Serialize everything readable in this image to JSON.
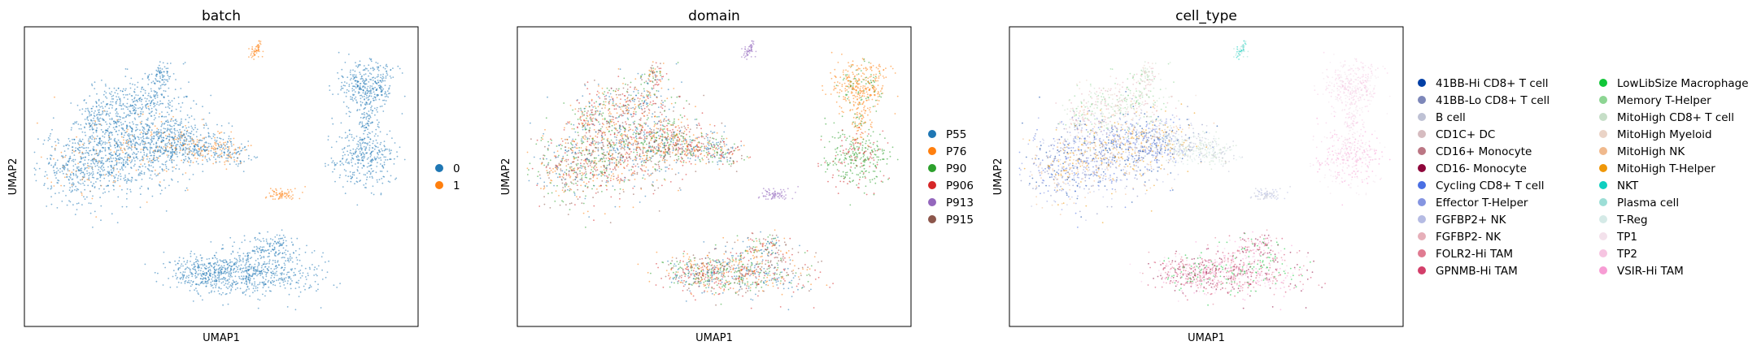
{
  "chart_data": [
    {
      "type": "scatter",
      "title": "batch",
      "xlabel": "UMAP1",
      "ylabel": "UMAP2",
      "legend_position": "right",
      "grid": false,
      "series": [
        {
          "name": "0",
          "color": "#1f77b4"
        },
        {
          "name": "1",
          "color": "#ff7f0e"
        }
      ]
    },
    {
      "type": "scatter",
      "title": "domain",
      "xlabel": "UMAP1",
      "ylabel": "UMAP2",
      "legend_position": "right",
      "grid": false,
      "series": [
        {
          "name": "P55",
          "color": "#1f77b4"
        },
        {
          "name": "P76",
          "color": "#ff7f0e"
        },
        {
          "name": "P90",
          "color": "#2ca02c"
        },
        {
          "name": "P906",
          "color": "#d62728"
        },
        {
          "name": "P913",
          "color": "#9467bd"
        },
        {
          "name": "P915",
          "color": "#8c564b"
        }
      ]
    },
    {
      "type": "scatter",
      "title": "cell_type",
      "xlabel": "UMAP1",
      "ylabel": "UMAP2",
      "legend_position": "right",
      "grid": false,
      "series": [
        {
          "name": "41BB-Hi CD8+ T cell",
          "color": "#023fa5"
        },
        {
          "name": "41BB-Lo CD8+ T cell",
          "color": "#7d87b9"
        },
        {
          "name": "B cell",
          "color": "#bec1d4"
        },
        {
          "name": "CD1C+ DC",
          "color": "#d6bcc0"
        },
        {
          "name": "CD16+ Monocyte",
          "color": "#bb7784"
        },
        {
          "name": "CD16- Monocyte",
          "color": "#8e063b"
        },
        {
          "name": "Cycling CD8+ T cell",
          "color": "#4a6fe3"
        },
        {
          "name": "Effector T-Helper",
          "color": "#8595e1"
        },
        {
          "name": "FGFBP2+ NK",
          "color": "#b5bbe3"
        },
        {
          "name": "FGFBP2- NK",
          "color": "#e6afb9"
        },
        {
          "name": "FOLR2-Hi TAM",
          "color": "#e07b91"
        },
        {
          "name": "GPNMB-Hi TAM",
          "color": "#d33f6a"
        },
        {
          "name": "LowLibSize Macrophage",
          "color": "#11c638"
        },
        {
          "name": "Memory T-Helper",
          "color": "#8dd593"
        },
        {
          "name": "MitoHigh CD8+ T cell",
          "color": "#c6dec7"
        },
        {
          "name": "MitoHigh Myeloid",
          "color": "#ead3c6"
        },
        {
          "name": "MitoHigh NK",
          "color": "#f0b98d"
        },
        {
          "name": "MitoHigh T-Helper",
          "color": "#ef9708"
        },
        {
          "name": "NKT",
          "color": "#0fcfc0"
        },
        {
          "name": "Plasma cell",
          "color": "#9cded6"
        },
        {
          "name": "T-Reg",
          "color": "#d5eae7"
        },
        {
          "name": "TP1",
          "color": "#f3e1eb"
        },
        {
          "name": "TP2",
          "color": "#f6c4e1"
        },
        {
          "name": "VSIR-Hi TAM",
          "color": "#f79cd4"
        }
      ]
    }
  ]
}
